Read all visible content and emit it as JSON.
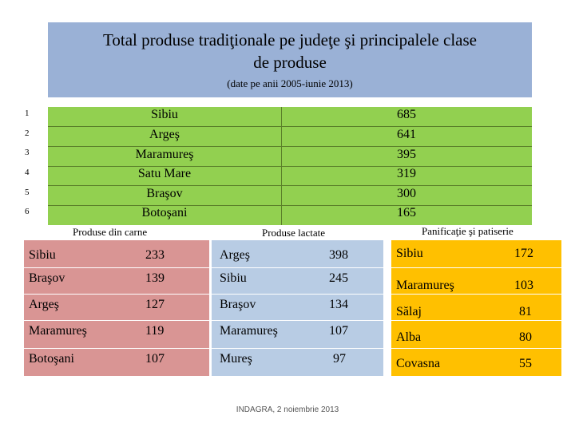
{
  "title": {
    "main_line1": "Total produse tradiţionale pe judeţe şi principalele clase",
    "main_line2": "de produse",
    "subtitle": "(date pe anii 2005-iunie 2013)"
  },
  "ranking": [
    {
      "rank": "1",
      "county": "Sibiu",
      "value": "685"
    },
    {
      "rank": "2",
      "county": "Argeş",
      "value": "641"
    },
    {
      "rank": "3",
      "county": "Maramureş",
      "value": "395"
    },
    {
      "rank": "4",
      "county": "Satu Mare",
      "value": "319"
    },
    {
      "rank": "5",
      "county": "Braşov",
      "value": "300"
    },
    {
      "rank": "6",
      "county": "Botoşani",
      "value": "165"
    }
  ],
  "categories": {
    "meat": {
      "label": "Produse din carne",
      "rows": [
        {
          "county": "Sibiu",
          "value": "233"
        },
        {
          "county": "Braşov",
          "value": "139"
        },
        {
          "county": "Argeş",
          "value": "127"
        },
        {
          "county": "Maramureş",
          "value": "119"
        },
        {
          "county": "Botoşani",
          "value": "107"
        }
      ]
    },
    "dairy": {
      "label": "Produse lactate",
      "rows": [
        {
          "county": "Argeş",
          "value": "398"
        },
        {
          "county": "Sibiu",
          "value": "245"
        },
        {
          "county": "Braşov",
          "value": "134"
        },
        {
          "county": "Maramureş",
          "value": "107"
        },
        {
          "county": "Mureş",
          "value": "97"
        }
      ]
    },
    "bakery": {
      "label": "Panificaţie şi patiserie",
      "rows": [
        {
          "county": "Sibiu",
          "value": "172"
        },
        {
          "county": "Maramureş",
          "value": "103"
        },
        {
          "county": "Sălaj",
          "value": "81"
        },
        {
          "county": "Alba",
          "value": "80"
        },
        {
          "county": "Covasna",
          "value": "55"
        }
      ]
    }
  },
  "footer": "INDAGRA, 2 noiembrie 2013",
  "colors": {
    "title_bg": "#9ab1d6",
    "ranking_bg": "#92d050",
    "meat_bg": "#d99594",
    "dairy_bg": "#b8cce4",
    "bakery_bg": "#ffc000"
  }
}
